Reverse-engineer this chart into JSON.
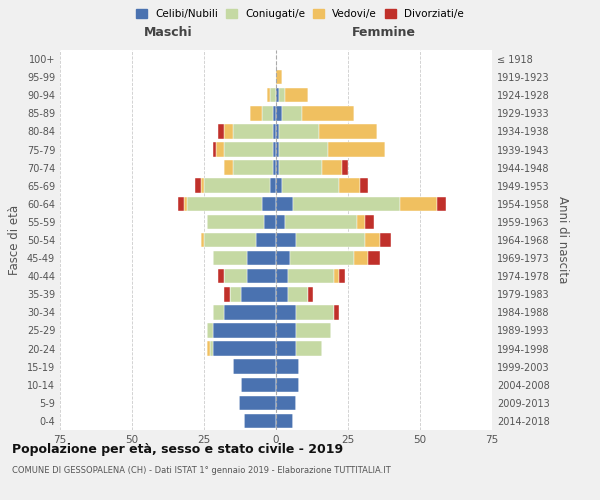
{
  "age_groups": [
    "0-4",
    "5-9",
    "10-14",
    "15-19",
    "20-24",
    "25-29",
    "30-34",
    "35-39",
    "40-44",
    "45-49",
    "50-54",
    "55-59",
    "60-64",
    "65-69",
    "70-74",
    "75-79",
    "80-84",
    "85-89",
    "90-94",
    "95-99",
    "100+"
  ],
  "birth_years": [
    "2014-2018",
    "2009-2013",
    "2004-2008",
    "1999-2003",
    "1994-1998",
    "1989-1993",
    "1984-1988",
    "1979-1983",
    "1974-1978",
    "1969-1973",
    "1964-1968",
    "1959-1963",
    "1954-1958",
    "1949-1953",
    "1944-1948",
    "1939-1943",
    "1934-1938",
    "1929-1933",
    "1924-1928",
    "1919-1923",
    "≤ 1918"
  ],
  "colors": {
    "celibi": "#4a72b0",
    "coniugati": "#c5d9a3",
    "vedovi": "#f0c060",
    "divorziati": "#c0302a"
  },
  "males": {
    "celibi": [
      11,
      13,
      12,
      15,
      22,
      22,
      18,
      12,
      10,
      10,
      7,
      4,
      5,
      2,
      1,
      1,
      1,
      1,
      0,
      0,
      0
    ],
    "coniugati": [
      0,
      0,
      0,
      0,
      1,
      2,
      4,
      4,
      8,
      12,
      18,
      20,
      26,
      23,
      14,
      17,
      14,
      4,
      2,
      0,
      0
    ],
    "vedovi": [
      0,
      0,
      0,
      0,
      1,
      0,
      0,
      0,
      0,
      0,
      1,
      0,
      1,
      1,
      3,
      3,
      3,
      4,
      1,
      0,
      0
    ],
    "divorziati": [
      0,
      0,
      0,
      0,
      0,
      0,
      0,
      2,
      2,
      0,
      0,
      0,
      2,
      2,
      0,
      1,
      2,
      0,
      0,
      0,
      0
    ]
  },
  "females": {
    "celibi": [
      6,
      7,
      8,
      8,
      7,
      7,
      7,
      4,
      4,
      5,
      7,
      3,
      6,
      2,
      1,
      1,
      1,
      2,
      1,
      0,
      0
    ],
    "coniugati": [
      0,
      0,
      0,
      0,
      9,
      12,
      13,
      7,
      16,
      22,
      24,
      25,
      37,
      20,
      15,
      17,
      14,
      7,
      2,
      0,
      0
    ],
    "vedovi": [
      0,
      0,
      0,
      0,
      0,
      0,
      0,
      0,
      2,
      5,
      5,
      3,
      13,
      7,
      7,
      20,
      20,
      18,
      8,
      2,
      0
    ],
    "divorziati": [
      0,
      0,
      0,
      0,
      0,
      0,
      2,
      2,
      2,
      4,
      4,
      3,
      3,
      3,
      2,
      0,
      0,
      0,
      0,
      0,
      0
    ]
  },
  "title": "Popolazione per età, sesso e stato civile - 2019",
  "subtitle": "COMUNE DI GESSOPALENA (CH) - Dati ISTAT 1° gennaio 2019 - Elaborazione TUTTITALIA.IT",
  "xlabel_left": "Maschi",
  "xlabel_right": "Femmine",
  "ylabel_left": "Fasce di età",
  "ylabel_right": "Anni di nascita",
  "xlim": 75,
  "legend_labels": [
    "Celibi/Nubili",
    "Coniugati/e",
    "Vedovi/e",
    "Divorziati/e"
  ],
  "bg_color": "#f0f0f0",
  "plot_bg": "#ffffff",
  "grid_color": "#cccccc"
}
